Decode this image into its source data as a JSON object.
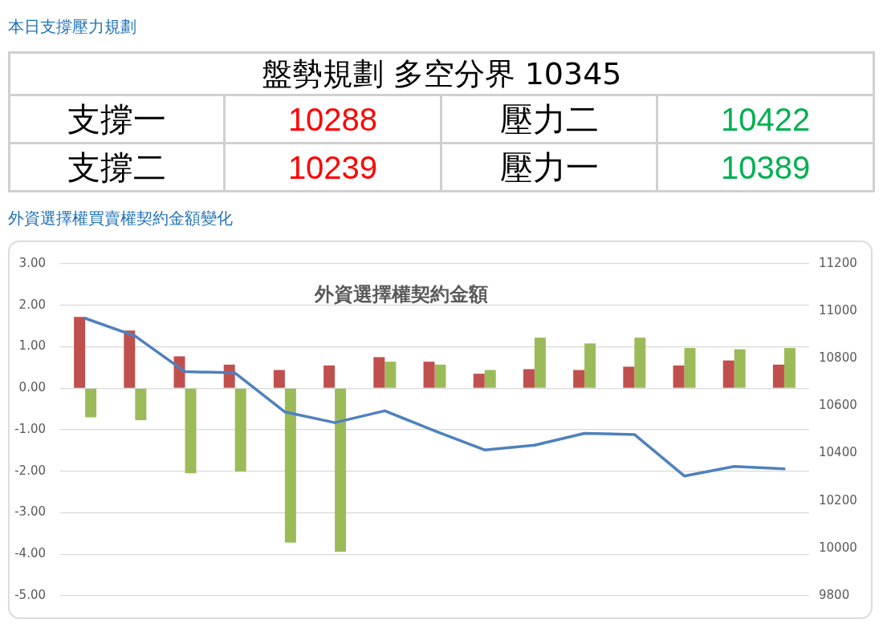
{
  "chart_data": [
    {
      "type": "other",
      "title": "本日支撐壓力規劃",
      "subtitle": "盤勢規劃 多空分界 10345",
      "categories": [
        "支撐一",
        "壓力二",
        "支撐二",
        "壓力一"
      ],
      "values": [
        10288,
        10422,
        10239,
        10389
      ],
      "colors": [
        "#ff0000",
        "#00b050",
        "#ff0000",
        "#00b050"
      ],
      "data_labels": true
    },
    {
      "type": "bar",
      "title": "外資選擇權買賣權契約金額變化",
      "subtitle": "外資選擇權契約金額",
      "categories": [
        null,
        null,
        null,
        null,
        null,
        null,
        null,
        null,
        null,
        null,
        null,
        null,
        null,
        null,
        null
      ],
      "series": [
        {
          "type": "bar",
          "color": "#c0504d",
          "values": [
            1.72,
            1.39,
            0.77,
            0.57,
            0.44,
            0.55,
            0.75,
            0.64,
            0.35,
            0.46,
            0.44,
            0.52,
            0.55,
            0.67,
            0.57
          ]
        },
        {
          "type": "bar",
          "color": "#9bbb59",
          "values": [
            -0.7,
            -0.77,
            -2.05,
            -2.01,
            -3.72,
            -3.94,
            0.64,
            0.57,
            0.44,
            1.22,
            1.08,
            1.22,
            0.97,
            0.94,
            0.97
          ]
        },
        {
          "type": "line",
          "color": "#4f81bd",
          "axis": "y2",
          "values": [
            10970,
            10895,
            10745,
            10740,
            10575,
            10530,
            10580,
            10495,
            10415,
            10435,
            10485,
            10480,
            10305,
            10345,
            10335
          ]
        }
      ],
      "ylim": [
        -5,
        3
      ],
      "yticks": [
        {
          "value": -5,
          "label": "-5.00"
        },
        {
          "value": -4,
          "label": "-4.00"
        },
        {
          "value": -3,
          "label": "-3.00"
        },
        {
          "value": -2,
          "label": "-2.00"
        },
        {
          "value": -1,
          "label": "-1.00"
        },
        {
          "value": 0,
          "label": "0.00"
        },
        {
          "value": 1,
          "label": "1.00"
        },
        {
          "value": 2,
          "label": "2.00"
        },
        {
          "value": 3,
          "label": "3.00"
        }
      ],
      "y2lim": [
        9800,
        11200
      ],
      "y2ticks": [
        9800,
        10000,
        10200,
        10400,
        10600,
        10800,
        11000,
        11200
      ],
      "grid": "y",
      "legend": false
    }
  ]
}
